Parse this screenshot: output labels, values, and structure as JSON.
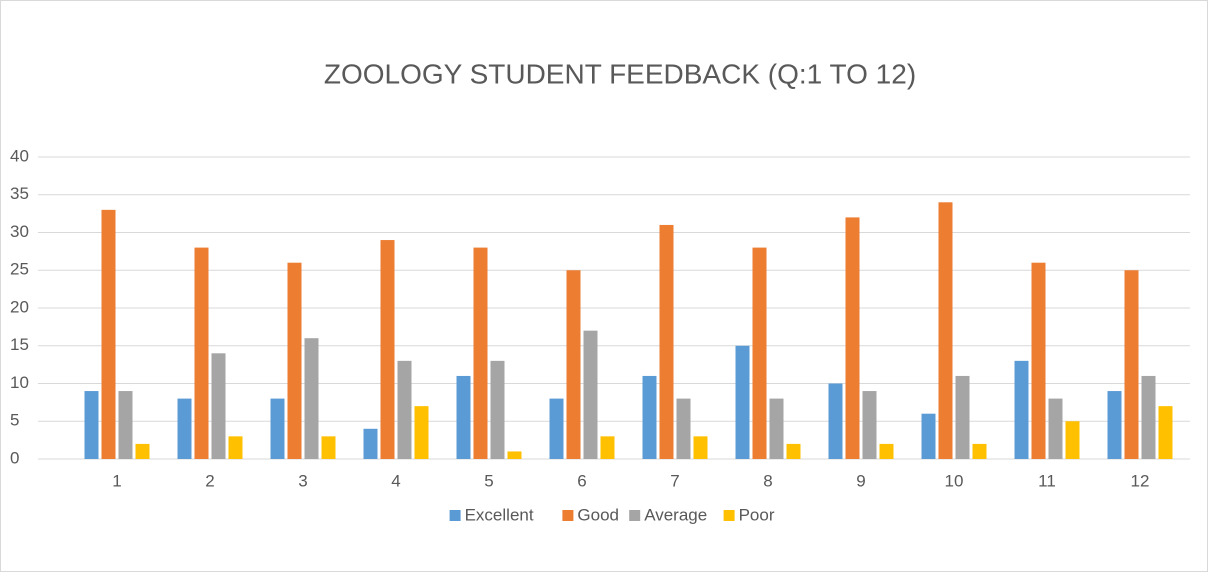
{
  "chart_data": {
    "type": "bar",
    "title": "ZOOLOGY STUDENT FEEDBACK (Q:1 TO 12)",
    "categories": [
      "1",
      "2",
      "3",
      "4",
      "5",
      "6",
      "7",
      "8",
      "9",
      "10",
      "11",
      "12"
    ],
    "series": [
      {
        "name": "Excellent",
        "color": "#5b9bd5",
        "values": [
          9,
          8,
          8,
          4,
          11,
          8,
          11,
          15,
          10,
          6,
          13,
          9
        ]
      },
      {
        "name": "Good",
        "color": "#ed7d31",
        "values": [
          33,
          28,
          26,
          29,
          28,
          25,
          31,
          28,
          32,
          34,
          26,
          25
        ]
      },
      {
        "name": "Average",
        "color": "#a5a5a5",
        "values": [
          9,
          14,
          16,
          13,
          13,
          17,
          8,
          8,
          9,
          11,
          8,
          11
        ]
      },
      {
        "name": "Poor",
        "color": "#ffc000",
        "values": [
          2,
          3,
          3,
          7,
          1,
          3,
          3,
          2,
          2,
          2,
          5,
          7
        ]
      }
    ],
    "ylim": [
      0,
      40
    ],
    "yticks": [
      0,
      5,
      10,
      15,
      20,
      25,
      30,
      35,
      40
    ],
    "grid": true,
    "legend": "bottom"
  }
}
